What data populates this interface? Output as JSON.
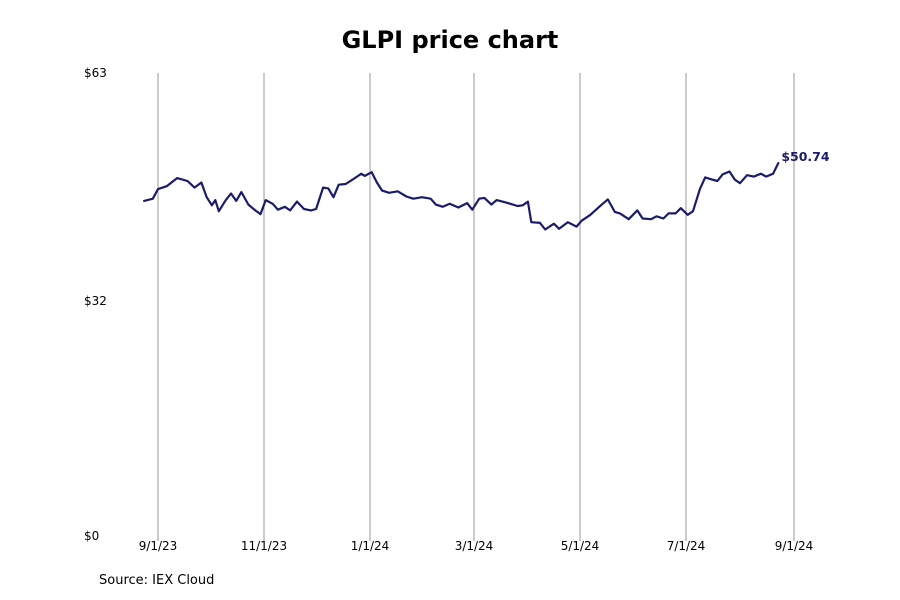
{
  "chart_data": {
    "type": "line",
    "title": "GLPI price chart",
    "source": "Source: IEX Cloud",
    "ylim": [
      0,
      63
    ],
    "yticks": [
      0,
      32,
      63
    ],
    "ytick_labels": [
      "$0",
      "$32",
      "$63"
    ],
    "xticks": [
      "2023-09-01",
      "2023-11-01",
      "2024-01-01",
      "2024-03-01",
      "2024-05-01",
      "2024-07-01",
      "2024-09-01"
    ],
    "xtick_labels": [
      "9/1/23",
      "11/1/23",
      "1/1/24",
      "3/1/24",
      "5/1/24",
      "7/1/24",
      "9/1/24"
    ],
    "grid": "vertical",
    "line_color": "#1b1b6b",
    "end_label": "$50.74",
    "series": [
      {
        "values": [
          [
            "2023-08-24",
            45.6
          ],
          [
            "2023-08-29",
            45.9
          ],
          [
            "2023-09-01",
            47.2
          ],
          [
            "2023-09-06",
            47.6
          ],
          [
            "2023-09-12",
            48.7
          ],
          [
            "2023-09-18",
            48.3
          ],
          [
            "2023-09-22",
            47.4
          ],
          [
            "2023-09-26",
            48.1
          ],
          [
            "2023-09-29",
            46.1
          ],
          [
            "2023-10-02",
            45.0
          ],
          [
            "2023-10-04",
            45.7
          ],
          [
            "2023-10-06",
            44.2
          ],
          [
            "2023-10-10",
            45.7
          ],
          [
            "2023-10-13",
            46.6
          ],
          [
            "2023-10-16",
            45.6
          ],
          [
            "2023-10-19",
            46.8
          ],
          [
            "2023-10-23",
            45.1
          ],
          [
            "2023-10-27",
            44.3
          ],
          [
            "2023-10-30",
            43.8
          ],
          [
            "2023-11-02",
            45.7
          ],
          [
            "2023-11-06",
            45.2
          ],
          [
            "2023-11-09",
            44.4
          ],
          [
            "2023-11-13",
            44.8
          ],
          [
            "2023-11-16",
            44.3
          ],
          [
            "2023-11-20",
            45.5
          ],
          [
            "2023-11-24",
            44.5
          ],
          [
            "2023-11-28",
            44.3
          ],
          [
            "2023-12-01",
            44.5
          ],
          [
            "2023-12-05",
            47.4
          ],
          [
            "2023-12-08",
            47.3
          ],
          [
            "2023-12-11",
            46.1
          ],
          [
            "2023-12-14",
            47.8
          ],
          [
            "2023-12-18",
            47.9
          ],
          [
            "2023-12-22",
            48.5
          ],
          [
            "2023-12-27",
            49.3
          ],
          [
            "2023-12-29",
            49.0
          ],
          [
            "2024-01-02",
            49.5
          ],
          [
            "2024-01-05",
            48.1
          ],
          [
            "2024-01-08",
            47.0
          ],
          [
            "2024-01-12",
            46.7
          ],
          [
            "2024-01-17",
            46.9
          ],
          [
            "2024-01-22",
            46.2
          ],
          [
            "2024-01-26",
            45.9
          ],
          [
            "2024-01-31",
            46.1
          ],
          [
            "2024-02-05",
            45.9
          ],
          [
            "2024-02-08",
            45.1
          ],
          [
            "2024-02-12",
            44.8
          ],
          [
            "2024-02-16",
            45.2
          ],
          [
            "2024-02-21",
            44.7
          ],
          [
            "2024-02-26",
            45.3
          ],
          [
            "2024-02-29",
            44.4
          ],
          [
            "2024-03-04",
            45.9
          ],
          [
            "2024-03-07",
            46.0
          ],
          [
            "2024-03-11",
            45.1
          ],
          [
            "2024-03-14",
            45.7
          ],
          [
            "2024-03-19",
            45.4
          ],
          [
            "2024-03-22",
            45.2
          ],
          [
            "2024-03-26",
            44.9
          ],
          [
            "2024-03-29",
            45.0
          ],
          [
            "2024-04-01",
            45.5
          ],
          [
            "2024-04-03",
            42.7
          ],
          [
            "2024-04-08",
            42.6
          ],
          [
            "2024-04-11",
            41.7
          ],
          [
            "2024-04-16",
            42.5
          ],
          [
            "2024-04-19",
            41.8
          ],
          [
            "2024-04-24",
            42.7
          ],
          [
            "2024-04-29",
            42.1
          ],
          [
            "2024-05-02",
            42.9
          ],
          [
            "2024-05-07",
            43.7
          ],
          [
            "2024-05-13",
            45.0
          ],
          [
            "2024-05-17",
            45.8
          ],
          [
            "2024-05-21",
            44.1
          ],
          [
            "2024-05-24",
            43.9
          ],
          [
            "2024-05-29",
            43.1
          ],
          [
            "2024-06-03",
            44.3
          ],
          [
            "2024-06-06",
            43.2
          ],
          [
            "2024-06-11",
            43.1
          ],
          [
            "2024-06-14",
            43.5
          ],
          [
            "2024-06-18",
            43.2
          ],
          [
            "2024-06-21",
            43.9
          ],
          [
            "2024-06-25",
            43.9
          ],
          [
            "2024-06-28",
            44.6
          ],
          [
            "2024-07-02",
            43.7
          ],
          [
            "2024-07-05",
            44.2
          ],
          [
            "2024-07-09",
            47.2
          ],
          [
            "2024-07-12",
            48.8
          ],
          [
            "2024-07-16",
            48.5
          ],
          [
            "2024-07-19",
            48.3
          ],
          [
            "2024-07-22",
            49.2
          ],
          [
            "2024-07-26",
            49.6
          ],
          [
            "2024-07-29",
            48.5
          ],
          [
            "2024-08-01",
            48.0
          ],
          [
            "2024-08-05",
            49.1
          ],
          [
            "2024-08-09",
            48.9
          ],
          [
            "2024-08-13",
            49.3
          ],
          [
            "2024-08-16",
            48.9
          ],
          [
            "2024-08-20",
            49.3
          ],
          [
            "2024-08-23",
            50.74
          ]
        ]
      }
    ]
  }
}
